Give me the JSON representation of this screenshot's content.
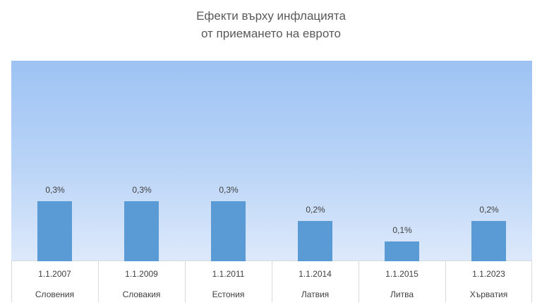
{
  "chart_data": {
    "type": "bar",
    "title": "Ефекти върху инфлацията от приемането на еврото",
    "title_lines": [
      "Ефекти върху инфлацията",
      "от приемането на еврото"
    ],
    "categories": [
      {
        "date": "1.1.2007",
        "country": "Словения"
      },
      {
        "date": "1.1.2009",
        "country": "Словакия"
      },
      {
        "date": "1.1.2011",
        "country": "Естония"
      },
      {
        "date": "1.1.2014",
        "country": "Латвия"
      },
      {
        "date": "1.1.2015",
        "country": "Литва"
      },
      {
        "date": "1.1.2023",
        "country": "Хърватия"
      }
    ],
    "values": [
      0.3,
      0.3,
      0.3,
      0.2,
      0.1,
      0.2
    ],
    "value_labels": [
      "0,3%",
      "0,3%",
      "0,3%",
      "0,2%",
      "0,1%",
      "0,2%"
    ],
    "xlabel": "",
    "ylabel": "",
    "ylim": [
      0,
      1.0
    ],
    "grid": false,
    "legend": "none",
    "colors": {
      "bar": "#5b9bd5",
      "plot_gradient_top": "#9dc3f4",
      "plot_gradient_bottom": "#dde9fb"
    }
  }
}
